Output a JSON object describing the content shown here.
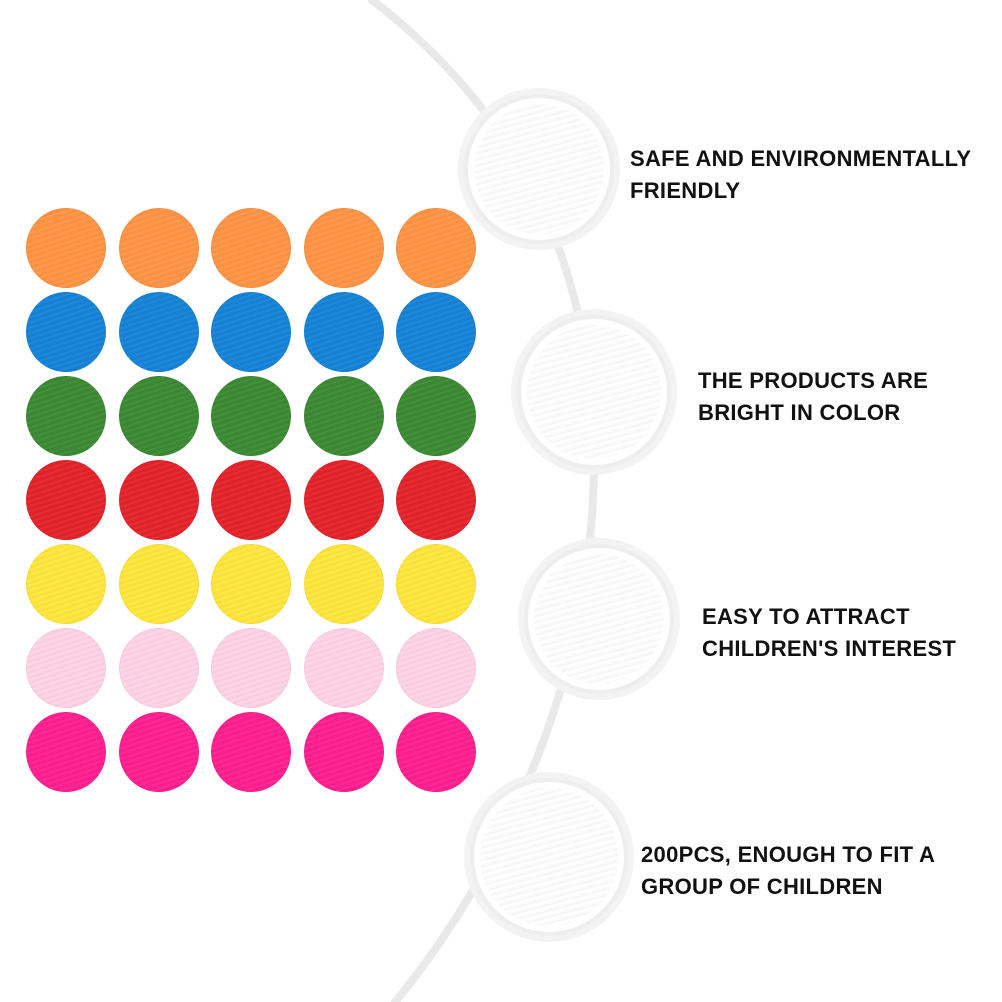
{
  "chip_grid": {
    "rows": [
      {
        "name": "orange",
        "color": "#ff9444"
      },
      {
        "name": "blue",
        "color": "#1683d8"
      },
      {
        "name": "green",
        "color": "#3c8a33"
      },
      {
        "name": "red",
        "color": "#e4232a"
      },
      {
        "name": "yellow",
        "color": "#ffe63d"
      },
      {
        "name": "pink",
        "color": "#ffd3e6"
      },
      {
        "name": "magenta",
        "color": "#ff1f8f"
      }
    ]
  },
  "features": [
    {
      "icon": "magenta-chip-icon",
      "color": "#ff1f8f",
      "lines": [
        "SAFE AND ENVIRONMENTALLY",
        "FRIENDLY"
      ]
    },
    {
      "icon": "pink-chip-icon",
      "color": "#ffd3e6",
      "lines": [
        "THE PRODUCTS ARE",
        "BRIGHT IN COLOR"
      ]
    },
    {
      "icon": "blue-chip-icon",
      "color": "#1683d8",
      "lines": [
        "EASY TO ATTRACT",
        "CHILDREN'S INTEREST"
      ]
    },
    {
      "icon": "red-chip-icon",
      "color": "#e4232a",
      "lines": [
        "200PCS, ENOUGH TO FIT A",
        "GROUP OF CHILDREN"
      ]
    }
  ],
  "decor": {
    "arc_color": "#e9e9e9"
  }
}
